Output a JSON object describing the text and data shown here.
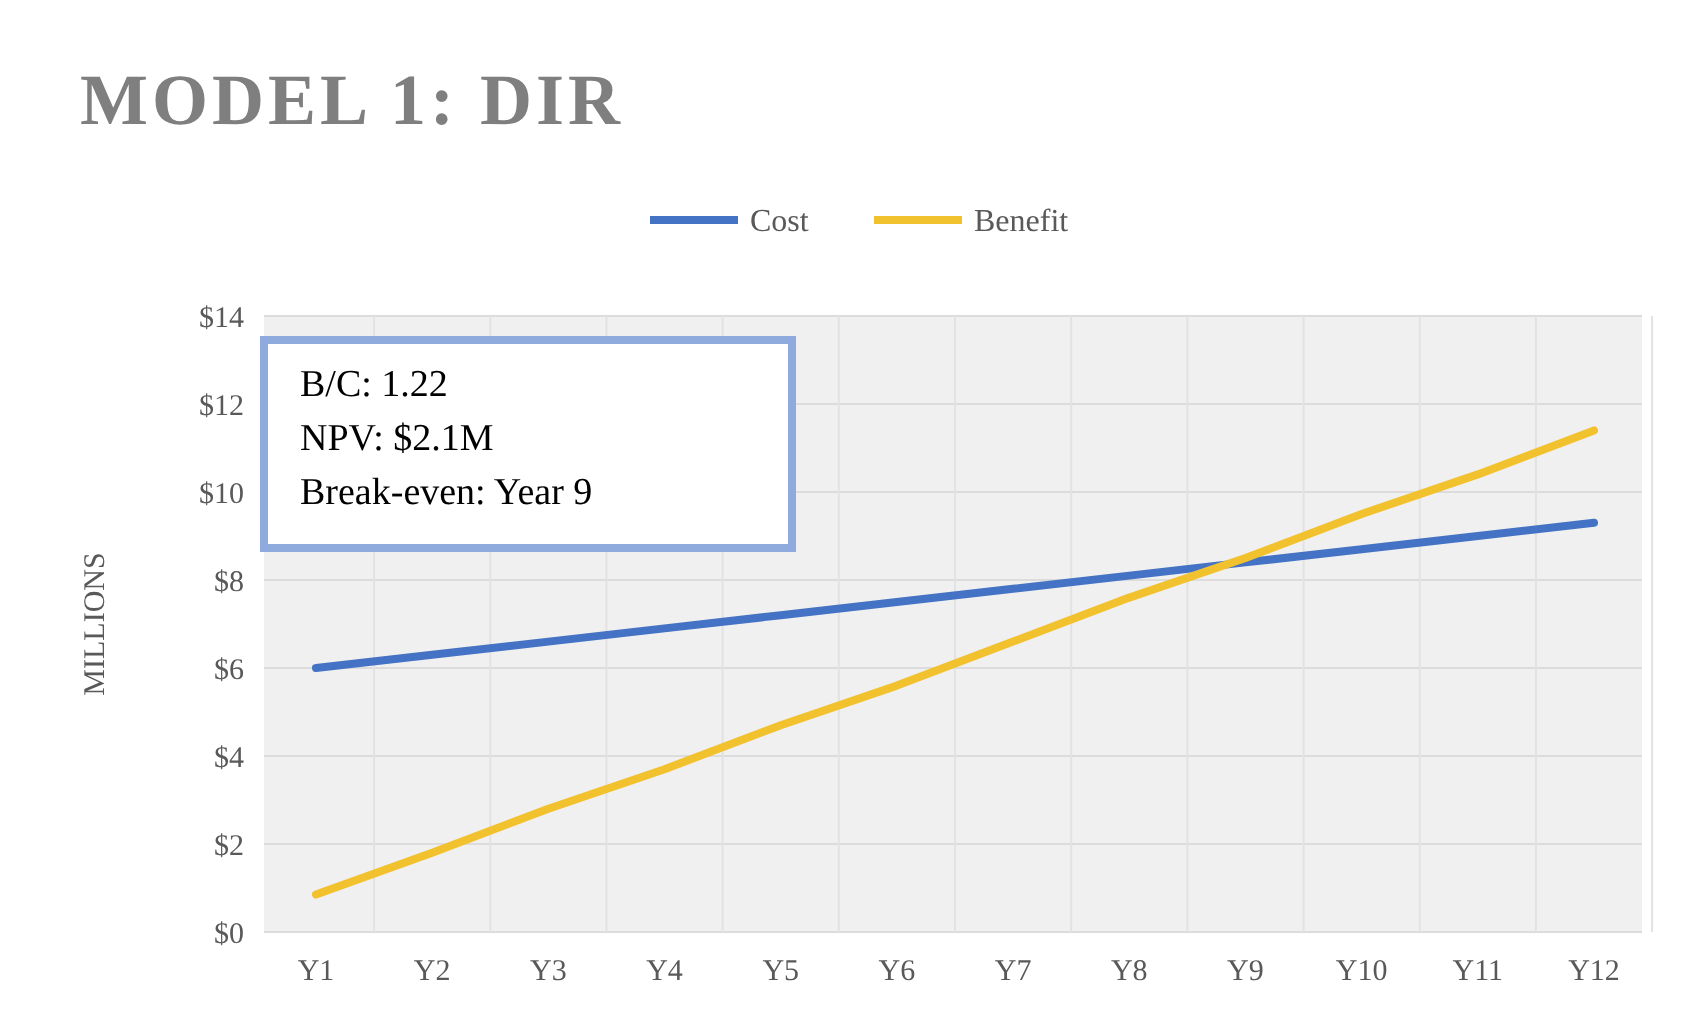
{
  "chart_data": {
    "type": "line",
    "title": "MODEL 1: DIR",
    "ylabel": "MILLIONS",
    "categories": [
      "Y1",
      "Y2",
      "Y3",
      "Y4",
      "Y5",
      "Y6",
      "Y7",
      "Y8",
      "Y9",
      "Y10",
      "Y11",
      "Y12"
    ],
    "series": [
      {
        "name": "Cost",
        "color": "#4472c4",
        "values": [
          6.0,
          6.3,
          6.6,
          6.9,
          7.2,
          7.5,
          7.8,
          8.1,
          8.4,
          8.7,
          9.0,
          9.3
        ]
      },
      {
        "name": "Benefit",
        "color": "#f2c12e",
        "values": [
          0.85,
          1.8,
          2.8,
          3.7,
          4.7,
          5.6,
          6.6,
          7.6,
          8.5,
          9.5,
          10.4,
          11.4
        ]
      }
    ],
    "ylim": [
      0,
      14
    ],
    "yticks": [
      {
        "value": 0,
        "label": "$0"
      },
      {
        "value": 2,
        "label": "$2"
      },
      {
        "value": 4,
        "label": "$4"
      },
      {
        "value": 6,
        "label": "$6"
      },
      {
        "value": 8,
        "label": "$8"
      },
      {
        "value": 10,
        "label": "$10"
      },
      {
        "value": 12,
        "label": "$12"
      },
      {
        "value": 14,
        "label": "$14"
      }
    ],
    "annotations": [
      "B/C: 1.22",
      "NPV: $2.1M",
      "Break-even: Year 9"
    ],
    "grid": true,
    "legend": "top",
    "marker": "none",
    "line_style": "solid"
  }
}
